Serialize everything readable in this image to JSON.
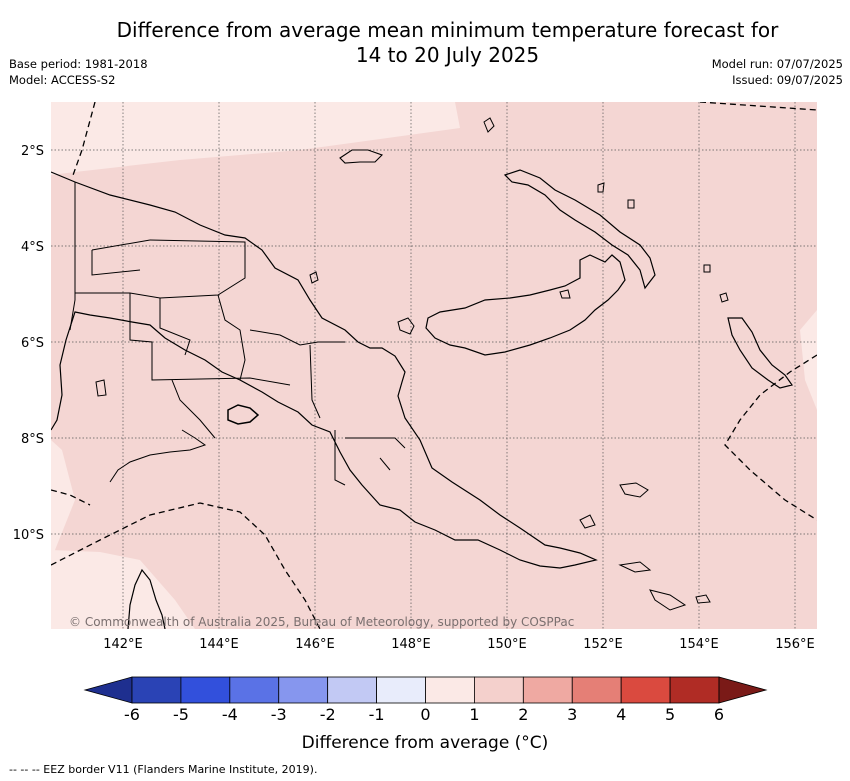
{
  "header": {
    "title_line1": "Difference from average mean minimum temperature forecast for",
    "title_line2": "14 to 20 July 2025",
    "base_period": "Base period: 1981-2018",
    "model": "Model: ACCESS-S2",
    "model_run": "Model run: 07/07/2025",
    "issued": "Issued: 09/07/2025"
  },
  "map": {
    "lat_labels": [
      "2°S",
      "4°S",
      "6°S",
      "8°S",
      "10°S"
    ],
    "lon_labels": [
      "142°E",
      "144°E",
      "146°E",
      "148°E",
      "150°E",
      "152°E",
      "154°E",
      "156°E"
    ],
    "copyright": "© Commonwealth of Australia 2025, Bureau of Meteorology, supported by COSPPac",
    "fill_colors": {
      "main": "#f4d6d3",
      "light": "#fbe9e6"
    }
  },
  "colorbar": {
    "tick_labels": [
      "-6",
      "-5",
      "-4",
      "-3",
      "-2",
      "-1",
      "0",
      "1",
      "2",
      "3",
      "4",
      "5",
      "6"
    ],
    "colors": [
      "#1e2f8f",
      "#2a43b5",
      "#3250dc",
      "#5a72e6",
      "#8696ee",
      "#c2c9f4",
      "#e8ecfb",
      "#fbe9e6",
      "#f4d0cc",
      "#efa9a2",
      "#e57f76",
      "#da4a3f",
      "#b02c25",
      "#7a1a17"
    ],
    "label": "Difference from average (°C)"
  },
  "footnote": "-- -- -- EEZ border V11 (Flanders Marine Institute, 2019)."
}
